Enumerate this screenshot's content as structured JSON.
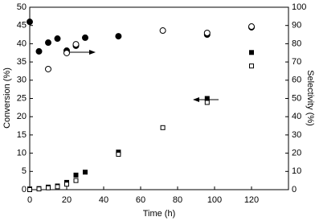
{
  "chart_data": {
    "type": "scatter",
    "xlabel": "Time (h)",
    "ylabel": "Conversion (%)",
    "y2label": "Selectivity (%)",
    "xlim": [
      0,
      140
    ],
    "xticks": [
      0,
      20,
      40,
      60,
      80,
      100,
      120
    ],
    "ylim": [
      0,
      50
    ],
    "yticks": [
      0,
      5,
      10,
      15,
      20,
      25,
      30,
      35,
      40,
      45,
      50
    ],
    "y2lim": [
      0,
      100
    ],
    "y2ticks": [
      0,
      10,
      20,
      30,
      40,
      50,
      60,
      70,
      80,
      90,
      100
    ],
    "series": [
      {
        "marker": "square",
        "filled": true,
        "color": "#000000",
        "x": [
          0,
          5,
          10,
          15,
          20,
          25,
          30,
          48,
          96,
          120
        ],
        "values": [
          0.2,
          0.3,
          0.7,
          1.0,
          2.0,
          4.0,
          4.8,
          10.3,
          25.0,
          37.6
        ]
      },
      {
        "marker": "square",
        "filled": false,
        "color": "#000000",
        "x": [
          0,
          5,
          10,
          15,
          20,
          25,
          48,
          72,
          96,
          120
        ],
        "values": [
          0,
          0.2,
          0.5,
          0.8,
          1.5,
          2.5,
          9.7,
          17.0,
          23.9,
          33.9
        ]
      },
      {
        "marker": "circle",
        "filled": true,
        "color": "#000000",
        "axis": "y2",
        "x": [
          0,
          5,
          10,
          15,
          20,
          25,
          30,
          48,
          96,
          120
        ],
        "values": [
          92.0,
          75.8,
          80.6,
          82.8,
          76.2,
          78.9,
          83.3,
          84.1,
          85.0,
          89.0
        ]
      },
      {
        "marker": "circle",
        "filled": false,
        "color": "#000000",
        "axis": "y2",
        "x": [
          10,
          20,
          25,
          72,
          96,
          120
        ],
        "values": [
          66.1,
          74.9,
          79.7,
          87.2,
          85.9,
          89.4
        ]
      }
    ]
  }
}
